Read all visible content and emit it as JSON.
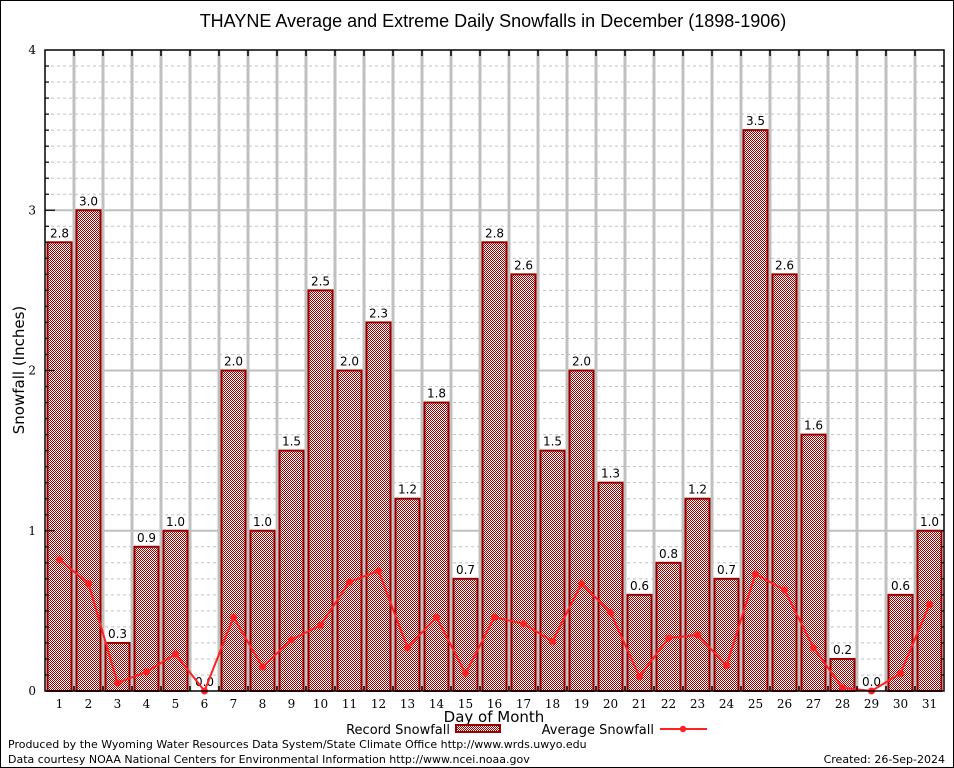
{
  "chart_data": {
    "type": "bar",
    "title": "THAYNE Average and Extreme Daily Snowfalls in December (1898-1906)",
    "xlabel": "Day of Month",
    "ylabel": "Snowfall (Inches)",
    "ylim": [
      0,
      4
    ],
    "yticks": [
      "0",
      "1",
      "2",
      "3",
      "4"
    ],
    "grid": true,
    "categories": [
      "1",
      "2",
      "3",
      "4",
      "5",
      "6",
      "7",
      "8",
      "9",
      "10",
      "11",
      "12",
      "13",
      "14",
      "15",
      "16",
      "17",
      "18",
      "19",
      "20",
      "21",
      "22",
      "23",
      "24",
      "25",
      "26",
      "27",
      "28",
      "29",
      "30",
      "31"
    ],
    "series": [
      {
        "name": "Record Snowfall",
        "type": "bar",
        "color": "#990000",
        "values": [
          2.8,
          3.0,
          0.3,
          0.9,
          1.0,
          0.0,
          2.0,
          1.0,
          1.5,
          2.5,
          2.0,
          2.3,
          1.2,
          1.8,
          0.7,
          2.8,
          2.6,
          1.5,
          2.0,
          1.3,
          0.6,
          0.8,
          1.2,
          0.7,
          3.5,
          2.6,
          1.6,
          0.2,
          0.0,
          0.6,
          1.0
        ],
        "labels": [
          "2.8",
          "3.0",
          "0.3",
          "0.9",
          "1.0",
          "0.0",
          "2.0",
          "1.0",
          "1.5",
          "2.5",
          "2.0",
          "2.3",
          "1.2",
          "1.8",
          "0.7",
          "2.8",
          "2.6",
          "1.5",
          "2.0",
          "1.3",
          "0.6",
          "0.8",
          "1.2",
          "0.7",
          "3.5",
          "2.6",
          "1.6",
          "0.2",
          "0.0",
          "0.6",
          "1.0"
        ]
      },
      {
        "name": "Average Snowfall",
        "type": "line",
        "color": "#ff2020",
        "values": [
          0.82,
          0.67,
          0.05,
          0.12,
          0.23,
          0.0,
          0.46,
          0.15,
          0.32,
          0.41,
          0.68,
          0.75,
          0.27,
          0.46,
          0.11,
          0.46,
          0.42,
          0.31,
          0.67,
          0.49,
          0.09,
          0.33,
          0.35,
          0.16,
          0.73,
          0.63,
          0.27,
          0.02,
          0.0,
          0.11,
          0.54
        ]
      }
    ],
    "legend": {
      "placement": "bottom-center",
      "entries": [
        "Record Snowfall",
        "Average Snowfall"
      ]
    }
  },
  "footer": {
    "produced_by": "Produced by the Wyoming Water Resources Data System/State Climate Office http://www.wrds.uwyo.edu",
    "data_courtesy": "Data courtesy NOAA National Centers for Environmental Information http://www.ncei.noaa.gov",
    "created": "Created:  26-Sep-2024"
  }
}
